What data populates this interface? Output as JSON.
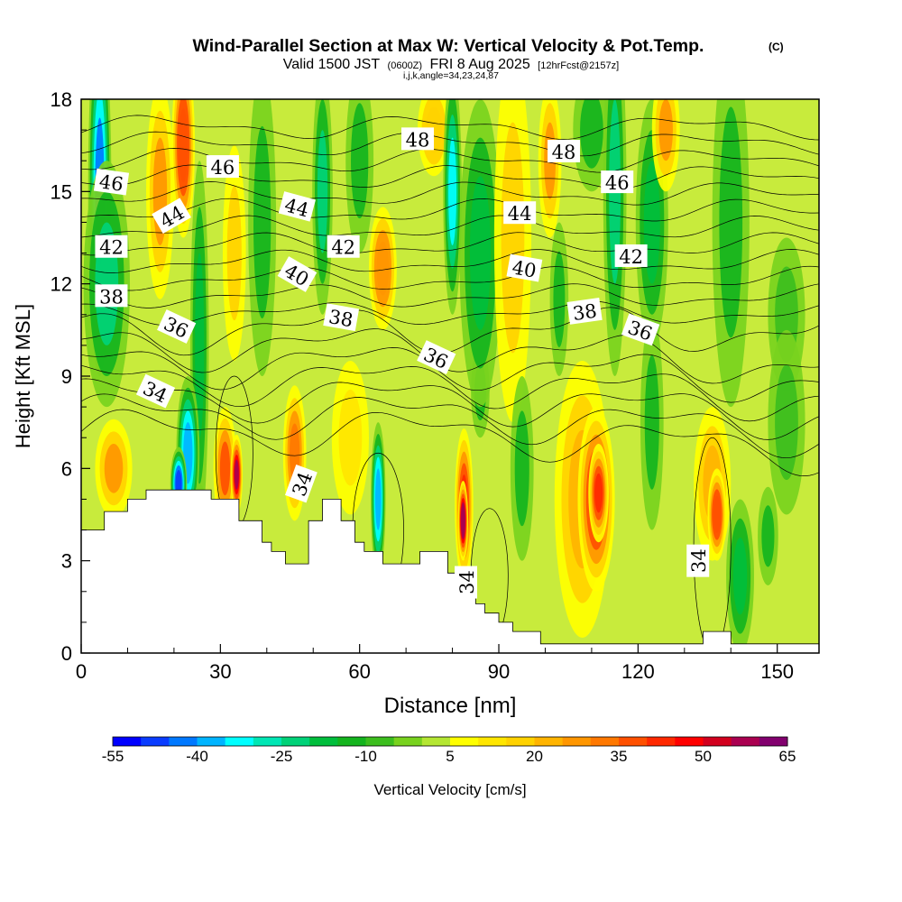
{
  "chart_data": {
    "type": "heatmap",
    "title": "Wind-Parallel Section at Max W: Vertical Velocity & Pot.Temp.",
    "title_mark": "(C)",
    "subtitle_parts": [
      "Valid 1500 JST",
      "(0600Z)",
      "FRI 8 Aug 2025",
      "[12hrFcst@2157z]"
    ],
    "subtitle2": "i,j,k,angle=34,23,24,87",
    "xlabel": "Distance [nm]",
    "ylabel": "Height [Kft MSL]",
    "xlim": [
      0,
      159
    ],
    "ylim": [
      0,
      18
    ],
    "xticks": [
      0,
      30,
      60,
      90,
      120,
      150
    ],
    "yticks": [
      0,
      3,
      6,
      9,
      12,
      15,
      18
    ],
    "colorbar": {
      "label": "Vertical Velocity [cm/s]",
      "tick_labels": [
        "-55",
        "-40",
        "-25",
        "-10",
        "5",
        "20",
        "35",
        "50",
        "65"
      ],
      "levels": [
        -55,
        -50,
        -45,
        -40,
        -35,
        -30,
        -25,
        -20,
        -15,
        -10,
        -5,
        0,
        5,
        10,
        15,
        20,
        25,
        30,
        35,
        40,
        45,
        50,
        55,
        60,
        65
      ],
      "colors": [
        "#0000ff",
        "#0a3cff",
        "#0078ff",
        "#00b4ff",
        "#00ffff",
        "#00e6b4",
        "#00d278",
        "#00be3c",
        "#14b41e",
        "#3cbe1e",
        "#78d21e",
        "#b4e632",
        "#ffff00",
        "#ffe600",
        "#ffd200",
        "#ffb400",
        "#ff9600",
        "#ff7800",
        "#ff5000",
        "#ff2800",
        "#ff0000",
        "#d2001e",
        "#aa0050",
        "#82006e",
        "#5a0096"
      ]
    },
    "terrain_kft": [
      [
        0,
        4.0
      ],
      [
        5,
        4.0
      ],
      [
        5,
        4.6
      ],
      [
        10,
        4.6
      ],
      [
        10,
        5.0
      ],
      [
        14,
        5.0
      ],
      [
        14,
        5.3
      ],
      [
        28,
        5.3
      ],
      [
        28,
        5.0
      ],
      [
        34,
        5.0
      ],
      [
        34,
        4.3
      ],
      [
        39,
        4.3
      ],
      [
        39,
        3.6
      ],
      [
        41,
        3.6
      ],
      [
        41,
        3.3
      ],
      [
        44,
        3.3
      ],
      [
        44,
        2.9
      ],
      [
        49,
        2.9
      ],
      [
        49,
        4.3
      ],
      [
        52,
        4.3
      ],
      [
        52,
        5.0
      ],
      [
        56,
        5.0
      ],
      [
        56,
        4.3
      ],
      [
        59,
        4.3
      ],
      [
        59,
        3.6
      ],
      [
        61,
        3.6
      ],
      [
        61,
        3.3
      ],
      [
        65,
        3.3
      ],
      [
        65,
        2.9
      ],
      [
        73,
        2.9
      ],
      [
        73,
        3.3
      ],
      [
        79,
        3.3
      ],
      [
        79,
        2.6
      ],
      [
        81,
        2.6
      ],
      [
        81,
        2.2
      ],
      [
        83,
        2.2
      ],
      [
        83,
        1.9
      ],
      [
        85,
        1.9
      ],
      [
        85,
        1.6
      ],
      [
        87,
        1.6
      ],
      [
        87,
        1.3
      ],
      [
        90,
        1.3
      ],
      [
        90,
        1.0
      ],
      [
        93,
        1.0
      ],
      [
        93,
        0.7
      ],
      [
        99,
        0.7
      ],
      [
        99,
        0.3
      ],
      [
        134,
        0.3
      ],
      [
        134,
        0.7
      ],
      [
        140,
        0.7
      ],
      [
        140,
        0.3
      ],
      [
        159,
        0.3
      ]
    ],
    "cells": [
      {
        "x": 4,
        "y": 15,
        "w": 2.5,
        "h": 6,
        "v": -45
      },
      {
        "x": 5.5,
        "y": 12,
        "w": 5,
        "h": 4,
        "v": -25
      },
      {
        "x": 7,
        "y": 6,
        "w": 4,
        "h": 1.6,
        "v": 25
      },
      {
        "x": 17,
        "y": 15,
        "w": 3,
        "h": 3.5,
        "v": 25
      },
      {
        "x": 22,
        "y": 16.5,
        "w": 2.5,
        "h": 3,
        "v": 38
      },
      {
        "x": 25.5,
        "y": 10,
        "w": 2,
        "h": 6,
        "v": -18
      },
      {
        "x": 23,
        "y": 6.5,
        "w": 2.5,
        "h": 2.5,
        "v": -40
      },
      {
        "x": 21,
        "y": 5.5,
        "w": 1.8,
        "h": 1.2,
        "v": -50
      },
      {
        "x": 25.5,
        "y": 4,
        "w": 1.8,
        "h": 1.5,
        "v": -20
      },
      {
        "x": 31,
        "y": 6,
        "w": 2.5,
        "h": 2,
        "v": 35
      },
      {
        "x": 33.5,
        "y": 5.8,
        "w": 1.3,
        "h": 1.3,
        "v": 55
      },
      {
        "x": 33,
        "y": 13,
        "w": 2.5,
        "h": 3.5,
        "v": 15
      },
      {
        "x": 39,
        "y": 14,
        "w": 3,
        "h": 5,
        "v": -15
      },
      {
        "x": 46,
        "y": 6.5,
        "w": 2.5,
        "h": 2.2,
        "v": 33
      },
      {
        "x": 52,
        "y": 15,
        "w": 2.2,
        "h": 4,
        "v": -25
      },
      {
        "x": 60,
        "y": 16,
        "w": 3,
        "h": 3,
        "v": -12
      },
      {
        "x": 65,
        "y": 12.5,
        "w": 3,
        "h": 2,
        "v": 28
      },
      {
        "x": 58,
        "y": 7,
        "w": 4,
        "h": 2.5,
        "v": 12
      },
      {
        "x": 64,
        "y": 5,
        "w": 1.6,
        "h": 2.5,
        "v": -40
      },
      {
        "x": 76,
        "y": 17,
        "w": 3.5,
        "h": 1.5,
        "v": 18
      },
      {
        "x": 80,
        "y": 15,
        "w": 2,
        "h": 4,
        "v": -35
      },
      {
        "x": 82.5,
        "y": 4.8,
        "w": 2,
        "h": 2.5,
        "v": 40
      },
      {
        "x": 82.3,
        "y": 4.3,
        "w": 1.1,
        "h": 1.3,
        "v": 56
      },
      {
        "x": 86,
        "y": 8.5,
        "w": 2,
        "h": 1.5,
        "v": -15
      },
      {
        "x": 86,
        "y": 13,
        "w": 4.5,
        "h": 5,
        "v": -20
      },
      {
        "x": 93,
        "y": 13.5,
        "w": 4,
        "h": 6,
        "v": 15
      },
      {
        "x": 95,
        "y": 6,
        "w": 2.5,
        "h": 3,
        "v": -12
      },
      {
        "x": 101,
        "y": 16,
        "w": 2.5,
        "h": 2.5,
        "v": 25
      },
      {
        "x": 103,
        "y": 11.5,
        "w": 2,
        "h": 2.5,
        "v": -15
      },
      {
        "x": 108,
        "y": 5,
        "w": 6,
        "h": 4.5,
        "v": 22
      },
      {
        "x": 111,
        "y": 5,
        "w": 4,
        "h": 3,
        "v": 36
      },
      {
        "x": 111.5,
        "y": 5.2,
        "w": 2.2,
        "h": 1.6,
        "v": 44
      },
      {
        "x": 110,
        "y": 17,
        "w": 4,
        "h": 2,
        "v": -15
      },
      {
        "x": 115,
        "y": 15,
        "w": 2.5,
        "h": 6,
        "v": -25
      },
      {
        "x": 123,
        "y": 7.5,
        "w": 2.5,
        "h": 3.5,
        "v": -15
      },
      {
        "x": 123,
        "y": 14,
        "w": 3.5,
        "h": 4,
        "v": -18
      },
      {
        "x": 126,
        "y": 17,
        "w": 3,
        "h": 2,
        "v": 25
      },
      {
        "x": 136,
        "y": 5.5,
        "w": 4,
        "h": 2.5,
        "v": 24
      },
      {
        "x": 137,
        "y": 4.5,
        "w": 2,
        "h": 1.5,
        "v": 36
      },
      {
        "x": 142,
        "y": 2.5,
        "w": 3,
        "h": 2.5,
        "v": -20
      },
      {
        "x": 148,
        "y": 3.8,
        "w": 2.2,
        "h": 1.6,
        "v": -15
      },
      {
        "x": 140,
        "y": 14,
        "w": 4,
        "h": 6,
        "v": -15
      },
      {
        "x": 152,
        "y": 11,
        "w": 4,
        "h": 2.5,
        "v": -10
      },
      {
        "x": 152,
        "y": 7.5,
        "w": 4,
        "h": 3,
        "v": -10
      }
    ],
    "contour_labels": [
      {
        "text": "48",
        "x": 72.5,
        "y": 16.7,
        "angle": 0
      },
      {
        "text": "48",
        "x": 104,
        "y": 16.3,
        "angle": 0
      },
      {
        "text": "46",
        "x": 6.5,
        "y": 15.3,
        "angle": 8
      },
      {
        "text": "46",
        "x": 30.5,
        "y": 15.8,
        "angle": 0
      },
      {
        "text": "46",
        "x": 115.5,
        "y": 15.3,
        "angle": 0
      },
      {
        "text": "44",
        "x": 19.5,
        "y": 14.2,
        "angle": -30
      },
      {
        "text": "44",
        "x": 46.5,
        "y": 14.5,
        "angle": 15
      },
      {
        "text": "44",
        "x": 94.5,
        "y": 14.3,
        "angle": 0
      },
      {
        "text": "42",
        "x": 6.5,
        "y": 13.2,
        "angle": 0
      },
      {
        "text": "42",
        "x": 56.5,
        "y": 13.2,
        "angle": 0
      },
      {
        "text": "42",
        "x": 118.5,
        "y": 12.9,
        "angle": 0
      },
      {
        "text": "40",
        "x": 46.5,
        "y": 12.3,
        "angle": 30
      },
      {
        "text": "40",
        "x": 95.5,
        "y": 12.5,
        "angle": 10
      },
      {
        "text": "38",
        "x": 6.5,
        "y": 11.6,
        "angle": 0
      },
      {
        "text": "38",
        "x": 56,
        "y": 10.9,
        "angle": 10
      },
      {
        "text": "38",
        "x": 108.5,
        "y": 11.1,
        "angle": -8
      },
      {
        "text": "36",
        "x": 20.5,
        "y": 10.6,
        "angle": 25
      },
      {
        "text": "36",
        "x": 76.5,
        "y": 9.6,
        "angle": 25
      },
      {
        "text": "36",
        "x": 120.5,
        "y": 10.5,
        "angle": 20
      },
      {
        "text": "34",
        "x": 16,
        "y": 8.5,
        "angle": 25
      },
      {
        "text": "34",
        "x": 47.5,
        "y": 5.5,
        "angle": -70
      },
      {
        "text": "34",
        "x": 83,
        "y": 2.3,
        "angle": -90
      },
      {
        "text": "34",
        "x": 133,
        "y": 3.0,
        "angle": -90
      }
    ]
  }
}
